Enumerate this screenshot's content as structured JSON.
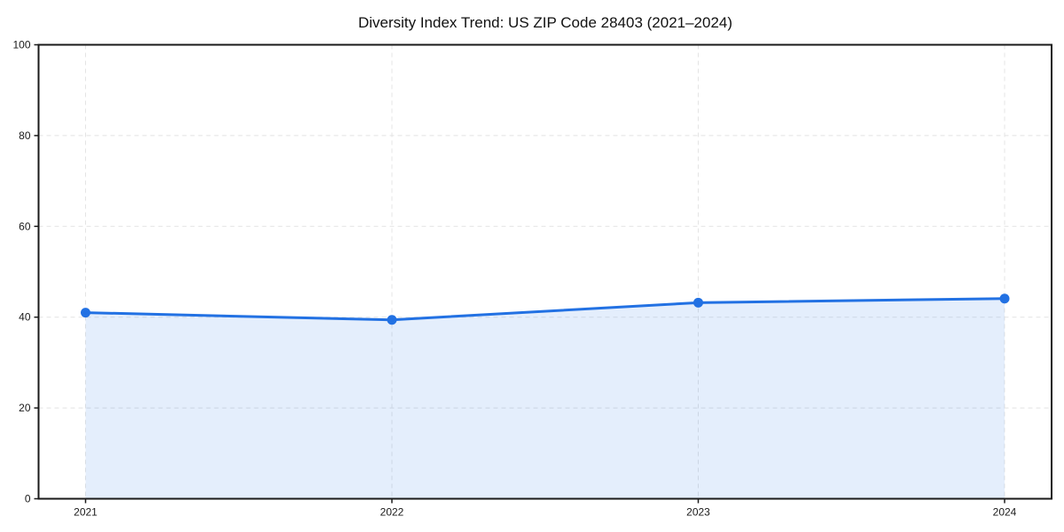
{
  "chart_data": {
    "type": "area",
    "title": "Diversity Index Trend: US ZIP Code 28403 (2021–2024)",
    "x": [
      2021,
      2022,
      2023,
      2024
    ],
    "xtick_labels": [
      "2021",
      "2022",
      "2023",
      "2024"
    ],
    "values": [
      41.0,
      39.4,
      43.2,
      44.1
    ],
    "xlabel": "",
    "ylabel": "",
    "ylim": [
      0,
      100
    ],
    "yticks": [
      0,
      20,
      40,
      60,
      80,
      100
    ],
    "legend": "none",
    "grid": {
      "visible": true,
      "style": "dashed",
      "color": "#e4e4e4"
    },
    "colors": {
      "line": "#2271e3",
      "fill": "#2271e3",
      "fill_opacity": 0.12,
      "marker": "#2271e3",
      "spine": "#1a1a1a",
      "tick_text": "#1a1a1a",
      "title_text": "#111111",
      "background": "#ffffff"
    },
    "marker": "circle"
  }
}
